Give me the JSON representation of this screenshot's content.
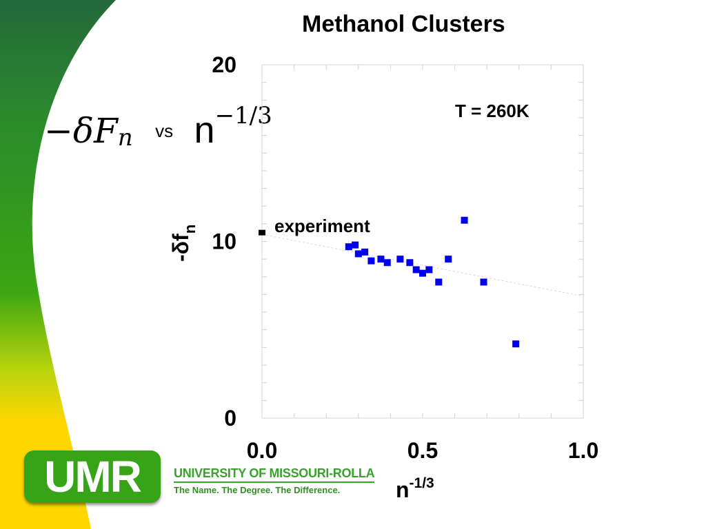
{
  "slide": {
    "title": "Methanol Clusters",
    "headline": {
      "lhs": "−δF",
      "lhs_sub": "n",
      "vs": "vs",
      "rhs": "n",
      "rhs_exp": "−1/3"
    },
    "accent_colors": {
      "green": "#2f9a14",
      "yellow": "#ffd600",
      "marker": "#0000ee"
    }
  },
  "logo": {
    "badge_text": "UMR",
    "university": "UNIVERSITY OF MISSOURI-ROLLA",
    "tagline": "The Name. The Degree. The Difference."
  },
  "chart_data": {
    "type": "scatter",
    "title": "Methanol Clusters",
    "xlabel": "n",
    "xlabel_sup": "-1/3",
    "ylabel": "-δf",
    "ylabel_sub": "n",
    "xlim": [
      0,
      1.0
    ],
    "ylim": [
      0,
      20
    ],
    "x_ticks": [
      {
        "value": 0.0,
        "label": "0.0"
      },
      {
        "value": 0.5,
        "label": "0.5"
      },
      {
        "value": 1.0,
        "label": "1.0"
      }
    ],
    "y_ticks": [
      {
        "value": 0,
        "label": "0"
      },
      {
        "value": 10,
        "label": "10"
      },
      {
        "value": 20,
        "label": "20"
      }
    ],
    "grid": true,
    "annotations": [
      {
        "text": "T = 260K"
      },
      {
        "text": "experiment"
      }
    ],
    "experiment_point": {
      "x": 0.0,
      "y": 10.5
    },
    "trend_line": {
      "x": [
        0.0,
        1.0
      ],
      "y": [
        10.4,
        6.9
      ]
    },
    "series": [
      {
        "marker": "square",
        "x": [
          0.27,
          0.29,
          0.3,
          0.32,
          0.34,
          0.37,
          0.39,
          0.43,
          0.46,
          0.48,
          0.5,
          0.52,
          0.55,
          0.58,
          0.63,
          0.69,
          0.79
        ],
        "y": [
          9.7,
          9.8,
          9.3,
          9.4,
          8.9,
          9.0,
          8.8,
          9.0,
          8.8,
          8.4,
          8.2,
          8.4,
          7.7,
          9.0,
          11.2,
          7.7,
          4.2
        ]
      }
    ]
  }
}
